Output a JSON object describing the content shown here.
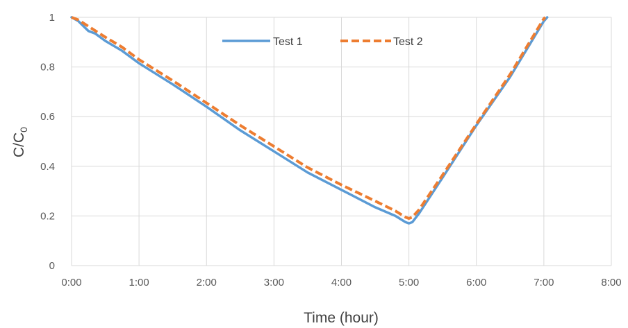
{
  "chart_data": {
    "type": "line",
    "xlabel": "Time (hour)",
    "ylabel": {
      "main": "C/C",
      "sub": "0"
    },
    "x_tick_labels": [
      "0:00",
      "1:00",
      "2:00",
      "3:00",
      "4:00",
      "5:00",
      "6:00",
      "7:00",
      "8:00"
    ],
    "y_tick_labels": [
      "0",
      "0.2",
      "0.4",
      "0.6",
      "0.8",
      "1"
    ],
    "xlim": [
      0,
      8
    ],
    "ylim": [
      0,
      1
    ],
    "x_unit": "hours",
    "grid": {
      "vertical": true,
      "horizontal": true
    },
    "legend_position": "top-center",
    "series": [
      {
        "name": "Test 1",
        "color": "#5B9BD5",
        "style": "solid",
        "points": [
          [
            0,
            1.0
          ],
          [
            0.1,
            0.985
          ],
          [
            0.25,
            0.945
          ],
          [
            0.35,
            0.935
          ],
          [
            0.5,
            0.905
          ],
          [
            0.75,
            0.865
          ],
          [
            1.0,
            0.815
          ],
          [
            1.5,
            0.73
          ],
          [
            2.0,
            0.64
          ],
          [
            2.5,
            0.545
          ],
          [
            3.0,
            0.46
          ],
          [
            3.5,
            0.375
          ],
          [
            4.0,
            0.305
          ],
          [
            4.5,
            0.235
          ],
          [
            4.8,
            0.2
          ],
          [
            4.95,
            0.175
          ],
          [
            5.0,
            0.17
          ],
          [
            5.05,
            0.175
          ],
          [
            5.15,
            0.21
          ],
          [
            5.5,
            0.355
          ],
          [
            6.0,
            0.565
          ],
          [
            6.5,
            0.76
          ],
          [
            6.8,
            0.895
          ],
          [
            7.0,
            0.985
          ],
          [
            7.05,
            1.0
          ]
        ]
      },
      {
        "name": "Test 2",
        "color": "#ED7D31",
        "style": "dashed",
        "points": [
          [
            0,
            1.0
          ],
          [
            0.1,
            0.99
          ],
          [
            0.3,
            0.955
          ],
          [
            0.5,
            0.92
          ],
          [
            0.75,
            0.88
          ],
          [
            1.0,
            0.83
          ],
          [
            1.5,
            0.745
          ],
          [
            2.0,
            0.655
          ],
          [
            2.5,
            0.565
          ],
          [
            3.0,
            0.48
          ],
          [
            3.5,
            0.395
          ],
          [
            4.0,
            0.325
          ],
          [
            4.5,
            0.26
          ],
          [
            4.8,
            0.22
          ],
          [
            4.95,
            0.195
          ],
          [
            5.0,
            0.19
          ],
          [
            5.05,
            0.195
          ],
          [
            5.15,
            0.225
          ],
          [
            5.5,
            0.365
          ],
          [
            6.0,
            0.57
          ],
          [
            6.5,
            0.77
          ],
          [
            6.8,
            0.905
          ],
          [
            7.0,
            0.995
          ],
          [
            7.02,
            1.0
          ]
        ]
      }
    ]
  }
}
